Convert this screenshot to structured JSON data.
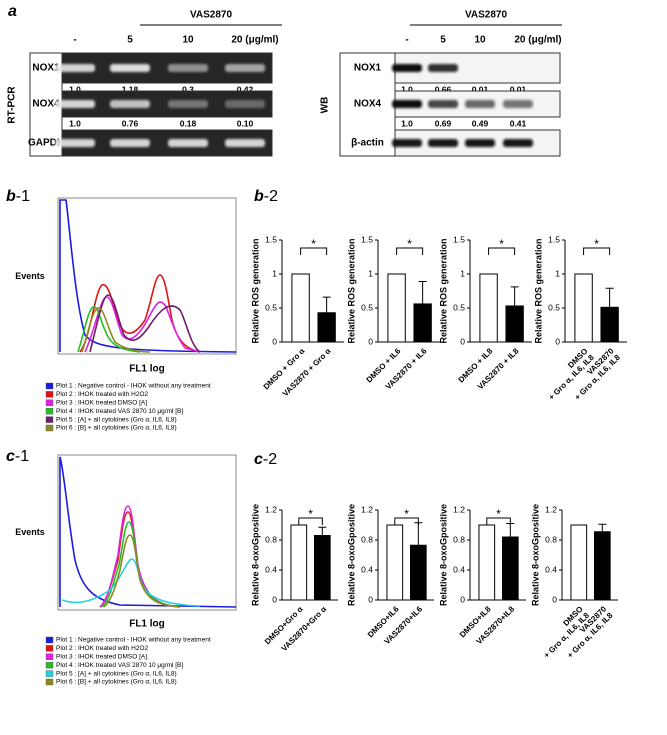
{
  "panel_a": {
    "label": "a",
    "rt_pcr": {
      "treatment": "VAS2870",
      "doses": [
        "-",
        "5",
        "10",
        "20 (μg/ml)"
      ],
      "method": "RT-PCR",
      "rows": [
        {
          "name": "NOX1",
          "quant": [
            "1.0",
            "1.18",
            "0.3",
            "0.42"
          ]
        },
        {
          "name": "NOX4",
          "quant": [
            "1.0",
            "0.76",
            "0.18",
            "0.10"
          ]
        },
        {
          "name": "GAPDH"
        }
      ]
    },
    "western_blot": {
      "treatment": "VAS2870",
      "doses": [
        "-",
        "5",
        "10",
        "20 (μg/ml)"
      ],
      "method": "WB",
      "rows": [
        {
          "name": "NOX1",
          "quant": [
            "1.0",
            "0.66",
            "0.01",
            "0.01"
          ]
        },
        {
          "name": "NOX4",
          "quant": [
            "1.0",
            "0.69",
            "0.49",
            "0.41"
          ]
        },
        {
          "name": "β-actin"
        }
      ]
    }
  },
  "panel_b1": {
    "label": {
      "letter": "b",
      "suffix": "-1"
    },
    "ylabel": "Events",
    "xlabel": "FL1 log",
    "legend": [
      {
        "label": "Plot 1 : Negative control - IHOK without any treatment",
        "color": "#1c1ce0"
      },
      {
        "label": "Plot 2 : IHOK treated with H2O2",
        "color": "#e01414"
      },
      {
        "label": "Plot 3 : IHOK treated DMSO [A]",
        "color": "#e020e0"
      },
      {
        "label": "Plot 4 : IHOK treated VAS 2870  10  μg/ml [B]",
        "color": "#22c022"
      },
      {
        "label": "Plot 5 : [A] + all cytokines  (Gro α, IL6, IL8)",
        "color": "#701a70"
      },
      {
        "label": "Plot 6 : [B] + all cytokines  (Gro α, IL6, IL8)",
        "color": "#8a8a1e"
      }
    ]
  },
  "panel_b2": {
    "label": {
      "letter": "b",
      "suffix": "-2"
    }
  },
  "panel_c1": {
    "label": {
      "letter": "c",
      "suffix": "-1"
    },
    "ylabel": "Events",
    "xlabel": "FL1 log",
    "legend": [
      {
        "label": "Plot 1 : Negative control - IHOK without any treatment",
        "color": "#1c1ce0"
      },
      {
        "label": "Plot 2 : IHOK treated with H2O2",
        "color": "#e01414"
      },
      {
        "label": "Plot 3 : IHOK treated DMSO [A]",
        "color": "#e020e0"
      },
      {
        "label": "Plot 4 : IHOK treated VAS 2870  10  μg/ml [B]",
        "color": "#22c022"
      },
      {
        "label": "Plot 5 : [A] + all cytokines  (Gro α, IL6, IL8)",
        "color": "#22d4e0"
      },
      {
        "label": "Plot 6 : [B] + all cytokines  (Gro α, IL6, IL8)",
        "color": "#8a8a1e"
      }
    ]
  },
  "panel_c2": {
    "label": {
      "letter": "c",
      "suffix": "-2"
    }
  },
  "chart_data": [
    {
      "type": "bar",
      "ylabel": "Relative ROS generation",
      "categories": [
        [
          "DMSO + Gro α"
        ],
        [
          "VAS2870 + Gro α"
        ]
      ],
      "values": [
        1,
        0.43
      ],
      "errors": [
        null,
        0.23
      ],
      "colors": [
        "#ffffff",
        "#000000"
      ],
      "ylim": [
        0,
        1.5
      ],
      "yticks": [
        0,
        0.5,
        1,
        1.5
      ],
      "annotation": "*"
    },
    {
      "type": "bar",
      "ylabel": "Relative ROS generation",
      "categories": [
        [
          "DMSO + IL6"
        ],
        [
          "VAS2870 + IL6"
        ]
      ],
      "values": [
        1,
        0.56
      ],
      "errors": [
        null,
        0.33
      ],
      "colors": [
        "#ffffff",
        "#000000"
      ],
      "ylim": [
        0,
        1.5
      ],
      "yticks": [
        0,
        0.5,
        1,
        1.5
      ],
      "annotation": "*"
    },
    {
      "type": "bar",
      "ylabel": "Relative ROS generation",
      "categories": [
        [
          "DMSO + IL8"
        ],
        [
          "VAS2870 + IL8"
        ]
      ],
      "values": [
        1,
        0.53
      ],
      "errors": [
        null,
        0.28
      ],
      "colors": [
        "#ffffff",
        "#000000"
      ],
      "ylim": [
        0,
        1.5
      ],
      "yticks": [
        0,
        0.5,
        1,
        1.5
      ],
      "annotation": "*"
    },
    {
      "type": "bar",
      "ylabel": "Relative ROS generation",
      "categories": [
        [
          "DMSO",
          "+ Gro α, IL6, IL8"
        ],
        [
          "VAS2870",
          "+ Gro α, IL6, IL8"
        ]
      ],
      "values": [
        1,
        0.51
      ],
      "errors": [
        null,
        0.28
      ],
      "colors": [
        "#ffffff",
        "#000000"
      ],
      "ylim": [
        0,
        1.5
      ],
      "yticks": [
        0,
        0.5,
        1,
        1.5
      ],
      "annotation": "*"
    },
    {
      "type": "bar",
      "ylabel": "Relative 8-oxoGpositive",
      "categories": [
        [
          "DMSO+Gro α"
        ],
        [
          "VAS2870+Gro α"
        ]
      ],
      "values": [
        1,
        0.86
      ],
      "errors": [
        null,
        0.11
      ],
      "colors": [
        "#ffffff",
        "#000000"
      ],
      "ylim": [
        0,
        1.2
      ],
      "yticks": [
        0,
        0.4,
        0.8,
        1.2
      ],
      "annotation": "*"
    },
    {
      "type": "bar",
      "ylabel": "Relative 8-oxoGpositive",
      "categories": [
        [
          "DMSO+IL6"
        ],
        [
          "VAS2870+IL6"
        ]
      ],
      "values": [
        1,
        0.73
      ],
      "errors": [
        null,
        0.3
      ],
      "colors": [
        "#ffffff",
        "#000000"
      ],
      "ylim": [
        0,
        1.2
      ],
      "yticks": [
        0,
        0.4,
        0.8,
        1.2
      ],
      "annotation": "*"
    },
    {
      "type": "bar",
      "ylabel": "Relative 8-oxoGpositive",
      "categories": [
        [
          "DMSO+IL8"
        ],
        [
          "VAS2870+IL8"
        ]
      ],
      "values": [
        1,
        0.84
      ],
      "errors": [
        null,
        0.18
      ],
      "colors": [
        "#ffffff",
        "#000000"
      ],
      "ylim": [
        0,
        1.2
      ],
      "yticks": [
        0,
        0.4,
        0.8,
        1.2
      ],
      "annotation": "*"
    },
    {
      "type": "bar",
      "ylabel": "Relative 8-oxoGpositive",
      "categories": [
        [
          "DMSO",
          "+ Gro α, IL6, IL8"
        ],
        [
          "VAS2870",
          "+ Gro α, IL6, IL8"
        ]
      ],
      "values": [
        1,
        0.91
      ],
      "errors": [
        null,
        0.1
      ],
      "colors": [
        "#ffffff",
        "#000000"
      ],
      "ylim": [
        0,
        1.2
      ],
      "yticks": [
        0,
        0.4,
        0.8,
        1.2
      ]
    }
  ]
}
